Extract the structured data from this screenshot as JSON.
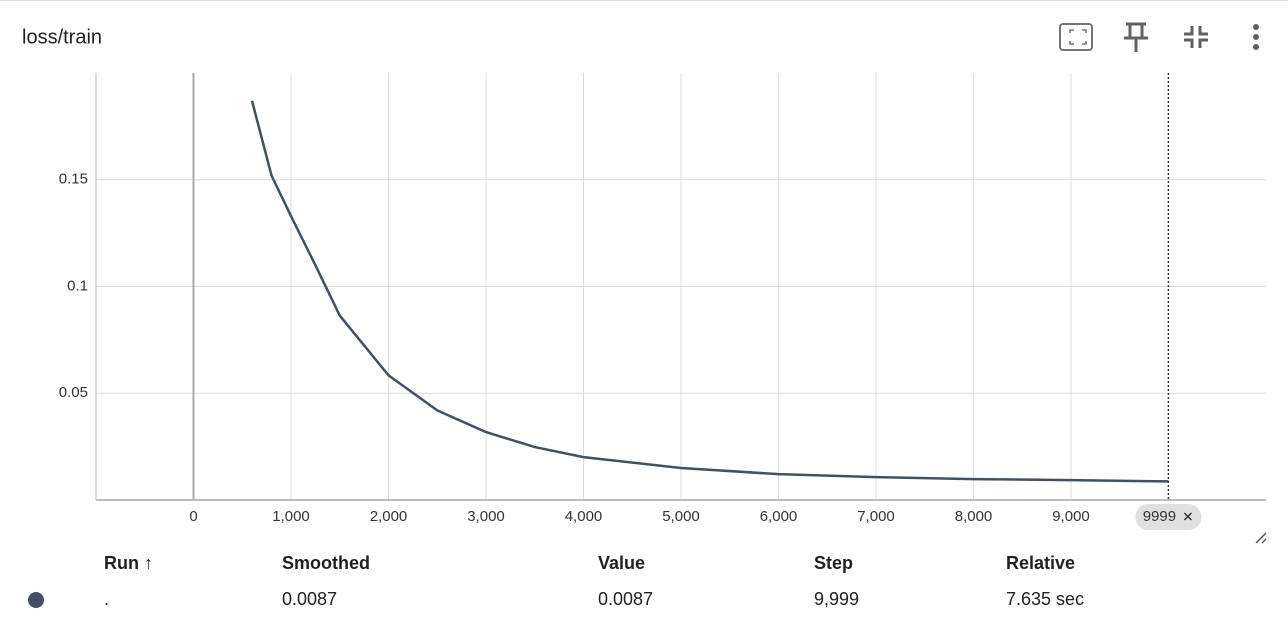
{
  "card": {
    "title": "loss/train"
  },
  "chart_data": {
    "type": "line",
    "x": [
      600,
      800,
      1000,
      1250,
      1500,
      1750,
      2000,
      2500,
      3000,
      3500,
      4000,
      5000,
      6000,
      7000,
      8000,
      9000,
      9999
    ],
    "series": [
      {
        "color": "#425066",
        "values": [
          0.187,
          0.152,
          0.133,
          0.11,
          0.0864,
          0.0724,
          0.0584,
          0.042,
          0.0318,
          0.0248,
          0.0201,
          0.015,
          0.0121,
          0.0107,
          0.0098,
          0.0093,
          0.0087
        ]
      }
    ],
    "xlim": [
      -1000,
      11000
    ],
    "ylim": [
      0,
      0.2
    ],
    "xticks": [
      0,
      {
        "value": 1000,
        "label": "1,000"
      },
      {
        "value": 2000,
        "label": "2,000"
      },
      {
        "value": 3000,
        "label": "3,000"
      },
      {
        "value": 4000,
        "label": "4,000"
      },
      {
        "value": 5000,
        "label": "5,000"
      },
      {
        "value": 6000,
        "label": "6,000"
      },
      {
        "value": 7000,
        "label": "7,000"
      },
      {
        "value": 8000,
        "label": "8,000"
      },
      {
        "value": 9000,
        "label": "9,000"
      }
    ],
    "yticks": [
      0.05,
      0.1,
      0.15
    ],
    "grid": true,
    "cursor": {
      "value": 9999,
      "label": "9999"
    }
  },
  "table": {
    "headers": [
      "Run ↑",
      "Smoothed",
      "Value",
      "Step",
      "Relative"
    ],
    "rows": [
      [
        ".",
        "0.0087",
        "0.0087",
        "9,999",
        "7.635 sec"
      ]
    ]
  }
}
